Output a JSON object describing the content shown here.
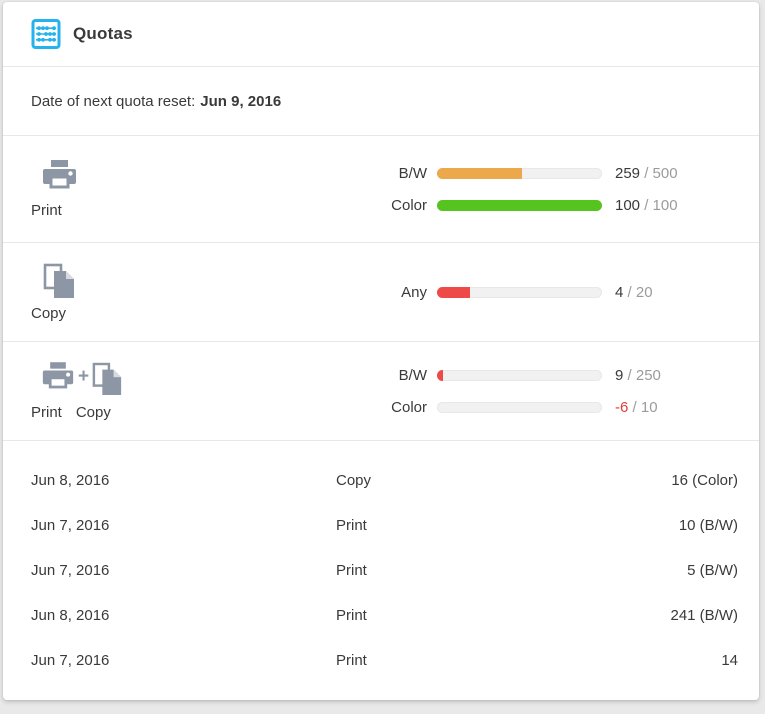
{
  "header": {
    "title": "Quotas"
  },
  "reset": {
    "label": "Date of next quota reset:",
    "date": "Jun 9, 2016"
  },
  "quotas": [
    {
      "name": "Print",
      "captions": [
        "Print"
      ],
      "rows": [
        {
          "label": "B/W",
          "used": "259",
          "limit": "/ 500",
          "percent": 51.8,
          "fill_color": "#eca94b",
          "used_color": "#3a3a3a"
        },
        {
          "label": "Color",
          "used": "100",
          "limit": "/ 100",
          "percent": 100,
          "fill_color": "#55c41e",
          "used_color": "#3a3a3a"
        }
      ]
    },
    {
      "name": "Copy",
      "captions": [
        "Copy"
      ],
      "rows": [
        {
          "label": "Any",
          "used": "4",
          "limit": "/ 20",
          "percent": 20,
          "fill_color": "#ee4a47",
          "used_color": "#3a3a3a"
        }
      ]
    },
    {
      "name": "Print + Copy",
      "joiner": "+",
      "captions": [
        "Print",
        "Copy"
      ],
      "rows": [
        {
          "label": "B/W",
          "used": "9",
          "limit": "/ 250",
          "percent": 3.6,
          "fill_color": "#ee4a47",
          "used_color": "#3a3a3a"
        },
        {
          "label": "Color",
          "used": "-6",
          "limit": "/ 10",
          "percent": 0,
          "fill_color": "#ee4a47",
          "used_color": "#e23b36"
        }
      ]
    }
  ],
  "history": [
    {
      "date": "Jun 8, 2016",
      "type": "Copy",
      "amount": "16 (Color)"
    },
    {
      "date": "Jun 7, 2016",
      "type": "Print",
      "amount": "10 (B/W)"
    },
    {
      "date": "Jun 7, 2016",
      "type": "Print",
      "amount": "5 (B/W)"
    },
    {
      "date": "Jun 8, 2016",
      "type": "Print",
      "amount": "241 (B/W)"
    },
    {
      "date": "Jun 7, 2016",
      "type": "Print",
      "amount": "14"
    }
  ],
  "colors": {
    "accent_cyan": "#24b3ee",
    "icon_gray": "#8d96a4",
    "bar_orange": "#eca94b",
    "bar_green": "#55c41e",
    "bar_red": "#ee4a47",
    "negative_text": "#e23b36",
    "muted_text": "#9b9b9b"
  }
}
